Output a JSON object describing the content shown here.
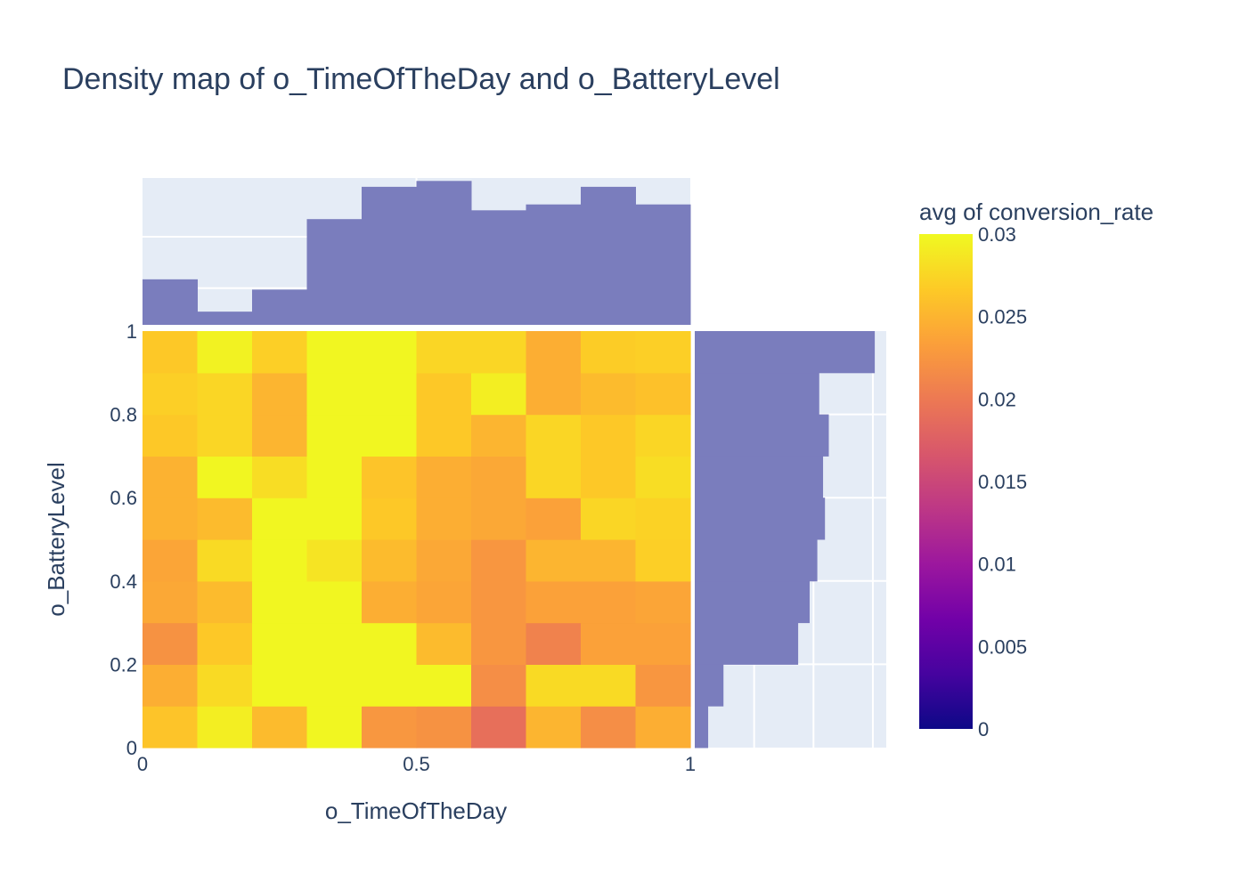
{
  "chart_data": {
    "type": "heatmap",
    "title": "Density map of  o_TimeOfTheDay and o_BatteryLevel",
    "xlabel": "o_TimeOfTheDay",
    "ylabel": "o_BatteryLevel",
    "colorbar_title": "avg of conversion_rate",
    "xlim": [
      0,
      1
    ],
    "ylim": [
      0,
      1
    ],
    "x_ticks": [
      "0",
      "0.5",
      "1"
    ],
    "x_tick_values": [
      0,
      0.5,
      1
    ],
    "y_ticks": [
      "0",
      "0.2",
      "0.4",
      "0.6",
      "0.8",
      "1"
    ],
    "y_tick_values": [
      0,
      0.2,
      0.4,
      0.6,
      0.8,
      1
    ],
    "colorbar_ticks": [
      "0",
      "0.005",
      "0.01",
      "0.015",
      "0.02",
      "0.025",
      "0.03"
    ],
    "colorbar_tick_values": [
      0,
      0.005,
      0.01,
      0.015,
      0.02,
      0.025,
      0.03
    ],
    "color_range": [
      0,
      0.03
    ],
    "colorscale": "Plasma",
    "marginal_color": "#7a7dbd",
    "x_bins": [
      [
        0,
        0.1
      ],
      [
        0.1,
        0.2
      ],
      [
        0.2,
        0.3
      ],
      [
        0.3,
        0.4
      ],
      [
        0.4,
        0.5
      ],
      [
        0.5,
        0.6
      ],
      [
        0.6,
        0.7
      ],
      [
        0.7,
        0.8
      ],
      [
        0.8,
        0.9
      ],
      [
        0.9,
        1.0
      ]
    ],
    "y_bins": [
      [
        0,
        0.1
      ],
      [
        0.1,
        0.2
      ],
      [
        0.2,
        0.3
      ],
      [
        0.3,
        0.4
      ],
      [
        0.4,
        0.5
      ],
      [
        0.5,
        0.6
      ],
      [
        0.6,
        0.7
      ],
      [
        0.7,
        0.8
      ],
      [
        0.8,
        0.9
      ],
      [
        0.9,
        1.0
      ]
    ],
    "z": [
      [
        0.0262,
        0.0292,
        0.0255,
        0.0298,
        0.0226,
        0.0222,
        0.019,
        0.025,
        0.0218,
        0.0245
      ],
      [
        0.0245,
        0.0278,
        0.0298,
        0.0298,
        0.0298,
        0.0298,
        0.0218,
        0.0278,
        0.0278,
        0.0225
      ],
      [
        0.0222,
        0.0265,
        0.0298,
        0.0298,
        0.0298,
        0.0255,
        0.0225,
        0.0208,
        0.0235,
        0.0235
      ],
      [
        0.024,
        0.0255,
        0.0298,
        0.0298,
        0.0245,
        0.0238,
        0.0225,
        0.0235,
        0.0235,
        0.0238
      ],
      [
        0.0238,
        0.0278,
        0.0298,
        0.0285,
        0.0255,
        0.024,
        0.0225,
        0.025,
        0.025,
        0.027
      ],
      [
        0.0248,
        0.0255,
        0.0298,
        0.0298,
        0.0265,
        0.0245,
        0.024,
        0.0235,
        0.0275,
        0.0272
      ],
      [
        0.0248,
        0.0298,
        0.028,
        0.0298,
        0.0262,
        0.0245,
        0.024,
        0.0275,
        0.0265,
        0.028
      ],
      [
        0.0265,
        0.0275,
        0.025,
        0.0298,
        0.0298,
        0.0265,
        0.025,
        0.0275,
        0.0265,
        0.0275
      ],
      [
        0.027,
        0.0275,
        0.025,
        0.0298,
        0.0298,
        0.0265,
        0.0292,
        0.0245,
        0.0255,
        0.026
      ],
      [
        0.0265,
        0.0295,
        0.027,
        0.0298,
        0.0298,
        0.0275,
        0.0275,
        0.0245,
        0.0268,
        0.027
      ]
    ],
    "x_marginal": [
      0.31,
      0.09,
      0.24,
      0.72,
      0.94,
      0.98,
      0.78,
      0.82,
      0.94,
      0.82
    ],
    "y_marginal": [
      0.07,
      0.15,
      0.54,
      0.6,
      0.64,
      0.68,
      0.67,
      0.7,
      0.65,
      0.94
    ]
  }
}
